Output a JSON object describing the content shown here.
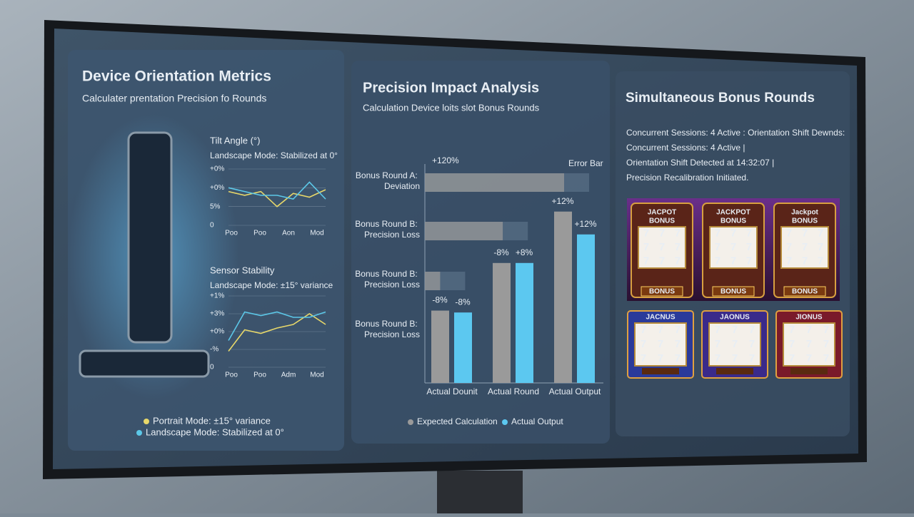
{
  "orientation": {
    "title": "Device Orientation Metrics",
    "subtitle": "Calculater prentation Precision fo Rounds",
    "charts": [
      {
        "title": "Tilt Angle (°)",
        "subtitle": "Landscape Mode: Stabilized at 0°",
        "ylim": [
          0,
          3.4
        ],
        "yticks": [
          {
            "value": 3,
            "label": "+0%"
          },
          {
            "value": 2,
            "label": "+0%"
          },
          {
            "value": 1,
            "label": "5%"
          },
          0
        ],
        "xlabels": [
          "Poo",
          "Poo",
          "Aon",
          "Mod"
        ],
        "series": [
          {
            "color": "#e8d86a",
            "values": [
              1.8,
              1.6,
              1.8,
              1.0,
              1.7,
              1.5,
              1.9
            ]
          },
          {
            "color": "#5cc8e8",
            "values": [
              2.0,
              1.8,
              1.6,
              1.6,
              1.4,
              2.3,
              1.4
            ]
          }
        ]
      },
      {
        "title": "Sensor Stability",
        "subtitle": "Landscape Mode: ±15° variance",
        "ylim": [
          0,
          4.2
        ],
        "yticks": [
          {
            "value": 4,
            "label": "+1%"
          },
          {
            "value": 3,
            "label": "+3%"
          },
          {
            "value": 2,
            "label": "+0%"
          },
          {
            "value": 1,
            "label": "-%"
          },
          0
        ],
        "xlabels": [
          "Poo",
          "Poo",
          "Adm",
          "Mod"
        ],
        "series": [
          {
            "color": "#e8d86a",
            "values": [
              0.9,
              2.1,
              1.9,
              2.2,
              2.4,
              3.0,
              2.4
            ]
          },
          {
            "color": "#5cc8e8",
            "values": [
              1.5,
              3.1,
              2.9,
              3.1,
              2.8,
              2.8,
              3.1
            ]
          }
        ]
      }
    ],
    "legend": [
      {
        "label": "Portrait Mode: ±15° variance",
        "color": "#e8d86a"
      },
      {
        "label": "Landscape Mode: Stabilized at 0°",
        "color": "#5cc8e8"
      }
    ]
  },
  "precision": {
    "title": "Precision Impact Analysis",
    "subtitle": "Calculation Device loits slot Bonus Rounds",
    "rows": [
      "Bonus Round A: Deviation",
      "Bonus Round B: Precision Loss",
      "Bonus Round B: Precision Loss",
      "Bonus Round B: Precision Loss"
    ],
    "row_values": [
      100,
      56,
      11,
      null
    ],
    "xlim": [
      0,
      100
    ],
    "notes": [
      "+120%",
      "Error Bar"
    ],
    "categories": [
      "Actual Dounit",
      "Actual Round",
      "Actual Output"
    ],
    "ylim": [
      0,
      100
    ],
    "series": [
      {
        "name": "Expected Calculation",
        "color": "#9a9a9a",
        "values": [
          38,
          63,
          90
        ]
      },
      {
        "name": "Actual Output",
        "color": "#5cc8f0",
        "values": [
          37,
          63,
          78
        ]
      }
    ],
    "bar_notes": [
      [
        "-8%",
        "-8%"
      ],
      [
        "-8%",
        "+8%"
      ],
      [
        "+12%",
        "+12%"
      ]
    ]
  },
  "bonus": {
    "title": "Simultaneous Bonus Rounds",
    "lines": [
      "Concurrent Sessions: 4 Active : Orientation  Shift Dewnds:",
      "Concurrent Sessions: 4 Active |",
      "Orientation Shift Detected at 14:32:07 |",
      "Precision Recalibration Initiated."
    ],
    "machines_top": [
      [
        "JACPOT",
        "BONUS"
      ],
      [
        "JACKPOT",
        "BONUS"
      ],
      [
        "Jackpot",
        "BONUS"
      ]
    ],
    "button": "BONUS",
    "machines_bottom": [
      "JACNUS",
      "JAONUS",
      "JIONUS"
    ],
    "symbol": "7"
  }
}
